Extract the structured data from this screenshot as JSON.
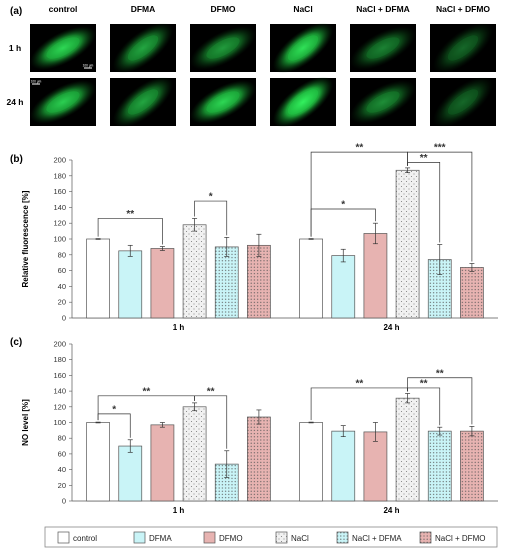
{
  "panel_labels": {
    "a": "(a)",
    "b": "(b)",
    "c": "(c)"
  },
  "micrographs": {
    "columns": [
      "control",
      "DFMA",
      "DFMO",
      "NaCl",
      "NaCl + DFMA",
      "NaCl + DFMO"
    ],
    "rows": [
      "1 h",
      "24 h"
    ],
    "scale_bar": "100 μm",
    "glow_levels": [
      [
        0.85,
        0.6,
        0.55,
        0.9,
        0.45,
        0.35
      ],
      [
        0.8,
        0.6,
        0.85,
        1.0,
        0.5,
        0.35
      ]
    ]
  },
  "colors": {
    "control": "#ffffff",
    "DFMA": "#c9f4f7",
    "DFMO": "#e7b3b1",
    "NaCl": "#eeeeee",
    "NaCl + DFMA": "#c9f4f7",
    "NaCl + DFMO": "#e7b3b1",
    "micrograph_bg": "#000000",
    "fluorescence": "#22d84a"
  },
  "legend": {
    "items": [
      {
        "label": "control",
        "key": "control",
        "pattern": "none"
      },
      {
        "label": "DFMA",
        "key": "DFMA",
        "pattern": "none"
      },
      {
        "label": "DFMO",
        "key": "DFMO",
        "pattern": "none"
      },
      {
        "label": "NaCl",
        "key": "NaCl",
        "pattern": "dots-sparse"
      },
      {
        "label": "NaCl + DFMA",
        "key": "NaCl + DFMA",
        "pattern": "dots-dense"
      },
      {
        "label": "NaCl + DFMO",
        "key": "NaCl + DFMO",
        "pattern": "dots-dense"
      }
    ]
  },
  "chart_data": [
    {
      "type": "bar",
      "panel": "(b)",
      "ylabel": "Relative fluorescence [%]",
      "ylim": [
        0,
        200
      ],
      "yticks": [
        0,
        20,
        40,
        60,
        80,
        100,
        120,
        140,
        160,
        180,
        200
      ],
      "categories": [
        "1 h",
        "24 h"
      ],
      "series": [
        {
          "name": "control",
          "values": [
            100,
            100
          ],
          "errors": [
            0.5,
            0.5
          ]
        },
        {
          "name": "DFMA",
          "values": [
            85,
            79
          ],
          "errors": [
            7,
            8
          ]
        },
        {
          "name": "DFMO",
          "values": [
            88,
            107
          ],
          "errors": [
            2.5,
            13
          ]
        },
        {
          "name": "NaCl",
          "values": [
            118,
            187
          ],
          "errors": [
            8,
            3
          ]
        },
        {
          "name": "NaCl + DFMA",
          "values": [
            90,
            74
          ],
          "errors": [
            12,
            19
          ]
        },
        {
          "name": "NaCl + DFMO",
          "values": [
            92,
            64
          ],
          "errors": [
            14,
            5
          ]
        }
      ],
      "significance": [
        {
          "group": 0,
          "from": 0,
          "to": 2,
          "label": "**",
          "y": 126
        },
        {
          "group": 0,
          "from": 3,
          "to": 4,
          "label": "*",
          "y": 148
        },
        {
          "group": 1,
          "from": 0,
          "to": 2,
          "label": "*",
          "y": 138
        },
        {
          "group": 1,
          "from": 0,
          "to": 3,
          "label": "**",
          "y": 210
        },
        {
          "group": 1,
          "from": 3,
          "to": 4,
          "label": "**",
          "y": 197
        },
        {
          "group": 1,
          "from": 3,
          "to": 5,
          "label": "***",
          "y": 210
        }
      ]
    },
    {
      "type": "bar",
      "panel": "(c)",
      "ylabel": "NO level [%]",
      "ylim": [
        0,
        200
      ],
      "yticks": [
        0,
        20,
        40,
        60,
        80,
        100,
        120,
        140,
        160,
        180,
        200
      ],
      "categories": [
        "1 h",
        "24 h"
      ],
      "series": [
        {
          "name": "control",
          "values": [
            100,
            100
          ],
          "errors": [
            0.5,
            0.5
          ]
        },
        {
          "name": "DFMA",
          "values": [
            70,
            89
          ],
          "errors": [
            8,
            7
          ]
        },
        {
          "name": "DFMO",
          "values": [
            97,
            88
          ],
          "errors": [
            3,
            12
          ]
        },
        {
          "name": "NaCl",
          "values": [
            120,
            131
          ],
          "errors": [
            5,
            6
          ]
        },
        {
          "name": "NaCl + DFMA",
          "values": [
            47,
            89
          ],
          "errors": [
            17,
            5
          ]
        },
        {
          "name": "NaCl + DFMO",
          "values": [
            107,
            89
          ],
          "errors": [
            9,
            6
          ]
        }
      ],
      "significance": [
        {
          "group": 0,
          "from": 0,
          "to": 1,
          "label": "*",
          "y": 111
        },
        {
          "group": 0,
          "from": 0,
          "to": 3,
          "label": "**",
          "y": 134
        },
        {
          "group": 0,
          "from": 3,
          "to": 4,
          "label": "**",
          "y": 134
        },
        {
          "group": 1,
          "from": 0,
          "to": 3,
          "label": "**",
          "y": 144
        },
        {
          "group": 1,
          "from": 3,
          "to": 4,
          "label": "**",
          "y": 144
        },
        {
          "group": 1,
          "from": 3,
          "to": 5,
          "label": "**",
          "y": 157
        }
      ]
    }
  ]
}
